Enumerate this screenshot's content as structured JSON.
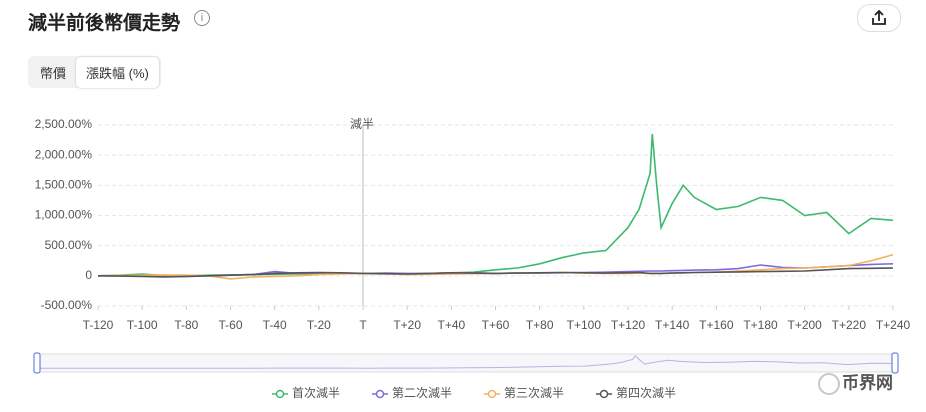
{
  "header": {
    "title": "減半前後幣價走勢",
    "tabs": [
      "幣價",
      "漲跌幅 (%)"
    ],
    "watermark": "币界网"
  },
  "chart_data": {
    "type": "line",
    "annotation": "減半",
    "x": [
      -120,
      -110,
      -100,
      -90,
      -80,
      -70,
      -60,
      -50,
      -40,
      -30,
      -20,
      -10,
      0,
      10,
      20,
      30,
      40,
      50,
      60,
      70,
      80,
      90,
      100,
      110,
      120,
      125,
      130,
      131,
      133,
      135,
      140,
      145,
      150,
      160,
      170,
      180,
      190,
      200,
      210,
      220,
      230,
      240
    ],
    "xlim": [
      -120,
      240
    ],
    "xticks": [
      {
        "value": -120,
        "label": "T-120"
      },
      {
        "value": -100,
        "label": "T-100"
      },
      {
        "value": -80,
        "label": "T-80"
      },
      {
        "value": -60,
        "label": "T-60"
      },
      {
        "value": -40,
        "label": "T-40"
      },
      {
        "value": -20,
        "label": "T-20"
      },
      {
        "value": 0,
        "label": "T"
      },
      {
        "value": 20,
        "label": "T+20"
      },
      {
        "value": 40,
        "label": "T+40"
      },
      {
        "value": 60,
        "label": "T+60"
      },
      {
        "value": 80,
        "label": "T+80"
      },
      {
        "value": 100,
        "label": "T+100"
      },
      {
        "value": 120,
        "label": "T+120"
      },
      {
        "value": 140,
        "label": "T+140"
      },
      {
        "value": 160,
        "label": "T+160"
      },
      {
        "value": 180,
        "label": "T+180"
      },
      {
        "value": 200,
        "label": "T+200"
      },
      {
        "value": 220,
        "label": "T+220"
      },
      {
        "value": 240,
        "label": "T+240"
      }
    ],
    "ylim": [
      -500,
      2500
    ],
    "yticks": [
      {
        "value": -500,
        "label": "-500.00%"
      },
      0,
      {
        "value": 500,
        "label": "500.00%"
      },
      {
        "value": 1000,
        "label": "1,000.00%"
      },
      {
        "value": 1500,
        "label": "1,500.00%"
      },
      {
        "value": 2000,
        "label": "2,000.00%"
      },
      {
        "value": 2500,
        "label": "2,500.00%"
      }
    ],
    "grid": true,
    "series": [
      {
        "name": "首次減半",
        "color": "#3dba6e",
        "values": [
          0,
          10,
          30,
          5,
          0,
          10,
          15,
          20,
          25,
          30,
          35,
          40,
          40,
          35,
          30,
          40,
          50,
          60,
          100,
          130,
          200,
          300,
          380,
          420,
          800,
          1100,
          1700,
          2350,
          1500,
          800,
          1200,
          1500,
          1300,
          1100,
          1150,
          1300,
          1250,
          1000,
          1050,
          700,
          950,
          920
        ]
      },
      {
        "name": "第二次減半",
        "color": "#7b6be0",
        "values": [
          0,
          0,
          -5,
          -10,
          -10,
          0,
          10,
          20,
          70,
          40,
          50,
          45,
          40,
          45,
          40,
          40,
          45,
          50,
          40,
          45,
          45,
          50,
          55,
          60,
          70,
          75,
          80,
          80,
          80,
          80,
          85,
          90,
          95,
          100,
          120,
          180,
          140,
          130,
          150,
          170,
          190,
          200
        ]
      },
      {
        "name": "第三次減半",
        "color": "#f5b25c",
        "values": [
          0,
          5,
          10,
          15,
          10,
          0,
          -50,
          -20,
          -10,
          0,
          20,
          30,
          40,
          30,
          20,
          25,
          30,
          35,
          40,
          45,
          50,
          55,
          45,
          40,
          40,
          45,
          40,
          40,
          40,
          40,
          45,
          50,
          55,
          60,
          80,
          100,
          120,
          130,
          150,
          170,
          250,
          350
        ]
      },
      {
        "name": "第四次減半",
        "color": "#555555",
        "values": [
          0,
          -5,
          -10,
          -20,
          -10,
          0,
          10,
          20,
          40,
          50,
          55,
          50,
          40,
          35,
          30,
          40,
          50,
          45,
          40,
          45,
          50,
          55,
          50,
          45,
          50,
          55,
          40,
          40,
          40,
          40,
          45,
          50,
          55,
          60,
          65,
          70,
          75,
          80,
          100,
          120,
          125,
          130
        ]
      }
    ]
  }
}
